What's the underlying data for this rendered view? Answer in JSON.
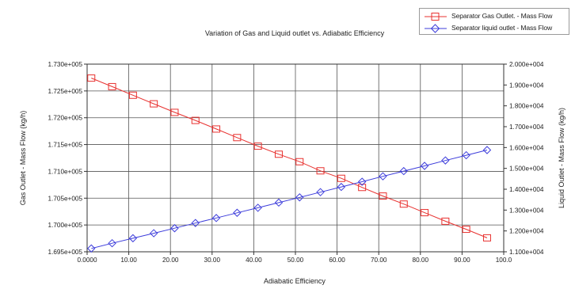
{
  "chart_data": {
    "type": "line",
    "title": "Variation of Gas and Liquid outlet vs. Adiabatic Efficiency",
    "xlabel": "Adiabatic Efficiency",
    "ylabel_left": "Gas Outlet - Mass Flow (kg/h)",
    "ylabel_right": "Liquid Outlet - Mass Flow (kg/h)",
    "xlim": [
      0,
      100
    ],
    "ylim_left": [
      169500,
      173000
    ],
    "ylim_right": [
      11000,
      20000
    ],
    "x_ticks": [
      0,
      10,
      20,
      30,
      40,
      50,
      60,
      70,
      80,
      90,
      100
    ],
    "x_tick_labels": [
      "0.0000",
      "10.00",
      "20.00",
      "30.00",
      "40.00",
      "50.00",
      "60.00",
      "70.00",
      "80.00",
      "90.00",
      "100.0"
    ],
    "y_left_ticks": [
      169500,
      170000,
      170500,
      171000,
      171500,
      172000,
      172500,
      173000
    ],
    "y_left_tick_labels": [
      "1.695e+005",
      "1.700e+005",
      "1.705e+005",
      "1.710e+005",
      "1.715e+005",
      "1.720e+005",
      "1.725e+005",
      "1.730e+005"
    ],
    "y_right_ticks": [
      11000,
      12000,
      13000,
      14000,
      15000,
      16000,
      17000,
      18000,
      19000,
      20000
    ],
    "y_right_tick_labels": [
      "1.100e+004",
      "1.200e+004",
      "1.300e+004",
      "1.400e+004",
      "1.500e+004",
      "1.600e+004",
      "1.700e+004",
      "1.800e+004",
      "1.900e+004",
      "2.000e+004"
    ],
    "grid": true,
    "legend_position": "top-right",
    "x": [
      1,
      6,
      11,
      16,
      21,
      26,
      31,
      36,
      41,
      46,
      51,
      56,
      61,
      66,
      71,
      76,
      81,
      86,
      91,
      96
    ],
    "series": [
      {
        "name": "Separator Gas Outlet. - Mass Flow",
        "axis": "left",
        "color": "#e8312f",
        "marker": "square",
        "values": [
          172740,
          172580,
          172420,
          172260,
          172100,
          171950,
          171790,
          171630,
          171470,
          171320,
          171180,
          171010,
          170870,
          170700,
          170540,
          170390,
          170230,
          170070,
          169920,
          169760
        ]
      },
      {
        "name": "Separator liquid outlet - Mass Flow",
        "axis": "right",
        "color": "#3d3ddb",
        "marker": "diamond",
        "values": [
          11160,
          11410,
          11650,
          11890,
          12130,
          12380,
          12620,
          12870,
          13110,
          13360,
          13610,
          13860,
          14110,
          14360,
          14620,
          14870,
          15120,
          15380,
          15630,
          15880
        ]
      }
    ]
  }
}
